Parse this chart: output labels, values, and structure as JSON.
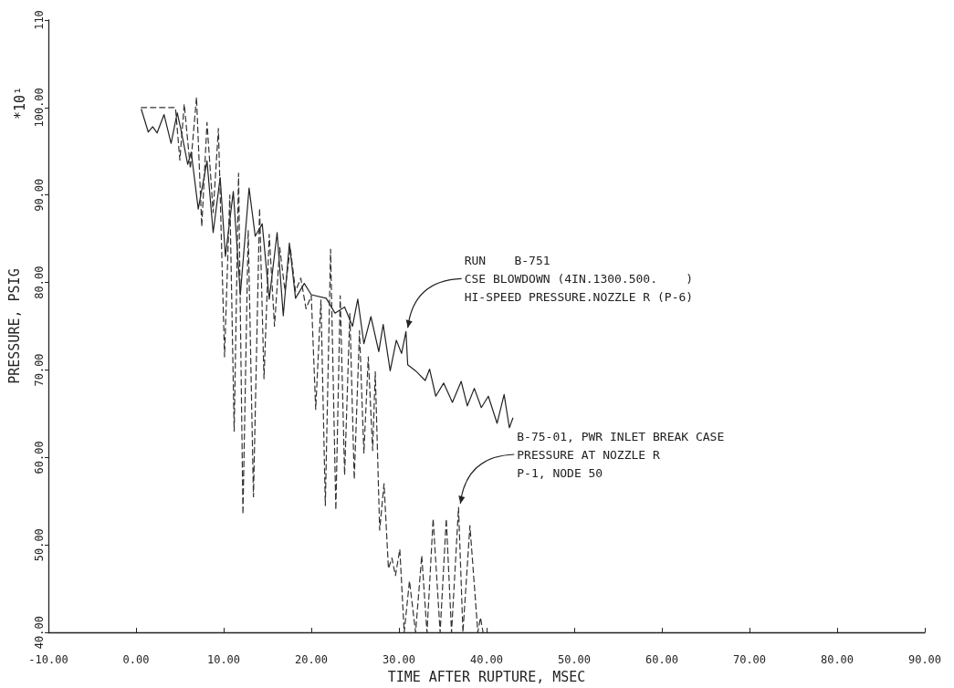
{
  "chart_data": {
    "type": "line",
    "xlabel": "TIME AFTER RUPTURE, MSEC",
    "ylabel": "PRESSURE, PSIG",
    "xlim": [
      -10,
      90
    ],
    "xticks": [
      {
        "value": -10,
        "label": "-10.00"
      },
      {
        "value": 0,
        "label": "0.00"
      },
      {
        "value": 10,
        "label": "10.00"
      },
      {
        "value": 20,
        "label": "20.00"
      },
      {
        "value": 30,
        "label": "30.00"
      },
      {
        "value": 40,
        "label": "40.00"
      },
      {
        "value": 50,
        "label": "50.00"
      },
      {
        "value": 60,
        "label": "60.00"
      },
      {
        "value": 70,
        "label": "70.00"
      },
      {
        "value": 80,
        "label": "80.00"
      },
      {
        "value": 90,
        "label": "90.00"
      }
    ],
    "ylim": [
      40,
      110
    ],
    "yticks": [
      {
        "value": 40,
        "label": "40.00"
      },
      {
        "value": 50,
        "label": "50.00"
      },
      {
        "value": 60,
        "label": "60.00"
      },
      {
        "value": 70,
        "label": "70.00"
      },
      {
        "value": 80,
        "label": "80.00"
      },
      {
        "value": 90,
        "label": "90.00"
      },
      {
        "value": 100,
        "label": "100.00"
      },
      {
        "value": 110,
        "label": "110"
      }
    ],
    "grid": false,
    "marker": "none",
    "annotations": [
      "*10¹",
      {
        "text": "RUN    B-751\nCSE BLOWDOWN (4IN.1300.500.    )\nHI-SPEED PRESSURE.NOZZLE R (P-6)",
        "x": 30.8,
        "y": 74.4
      },
      {
        "text": "B-75-01, PWR INLET BREAK CASE\nPRESSURE AT NOZZLE R\nP-1, NODE 50",
        "x": 36.8,
        "y": 54.3
      }
    ],
    "series": [
      {
        "color": "#222222",
        "line_style": "solid",
        "x": [
          0.6,
          1.4,
          1.9,
          2.4,
          3.2,
          4.0,
          4.7,
          5.1,
          5.9,
          6.3,
          7.1,
          8.1,
          8.8,
          9.6,
          10.2,
          11.1,
          11.9,
          12.9,
          13.6,
          14.4,
          15.2,
          16.1,
          16.8,
          17.5,
          18.2,
          19.2,
          20.0,
          21.7,
          22.7,
          23.8,
          24.7,
          25.3,
          26.0,
          26.8,
          27.7,
          28.2,
          29.0,
          29.7,
          30.3,
          30.8,
          31.0,
          31.9,
          33.0,
          33.5,
          34.2,
          35.1,
          36.1,
          37.1,
          37.8,
          38.6,
          39.4,
          40.2,
          41.2,
          42.0,
          42.6,
          43.0
        ],
        "values": [
          99.8,
          97.2,
          97.8,
          97.1,
          99.2,
          95.9,
          99.4,
          97.6,
          93.5,
          94.9,
          88.4,
          93.9,
          85.7,
          92.0,
          83.0,
          90.4,
          78.6,
          90.8,
          85.3,
          86.7,
          78.1,
          85.7,
          76.2,
          84.5,
          78.2,
          79.9,
          78.6,
          78.2,
          76.5,
          77.2,
          75.0,
          78.1,
          73.0,
          76.1,
          72.1,
          75.2,
          69.9,
          73.4,
          71.9,
          74.4,
          70.6,
          69.9,
          68.8,
          70.1,
          67.0,
          68.5,
          66.3,
          68.7,
          65.9,
          67.9,
          65.7,
          67.0,
          63.9,
          67.2,
          63.4,
          64.5
        ]
      },
      {
        "color": "#333333",
        "line_style": "dashed",
        "x": [
          0.6,
          4.5,
          5.0,
          5.5,
          6.2,
          6.9,
          7.5,
          8.1,
          8.8,
          9.4,
          10.1,
          10.7,
          11.2,
          11.7,
          12.2,
          12.8,
          13.4,
          14.1,
          14.6,
          15.2,
          15.8,
          16.4,
          17.0,
          17.6,
          18.2,
          18.8,
          19.4,
          20.0,
          20.5,
          21.1,
          21.6,
          22.2,
          22.8,
          23.3,
          23.8,
          24.4,
          24.9,
          25.5,
          26.0,
          26.5,
          27.0,
          27.3,
          27.8,
          28.3,
          28.8,
          29.2,
          29.6,
          30.1,
          30.6,
          31.2,
          31.9,
          32.6,
          33.2,
          33.9,
          34.7,
          35.4,
          36.0,
          36.8,
          37.3,
          38.1,
          39.0,
          39.3,
          39.6
        ],
        "values": [
          100,
          100,
          94.0,
          100.4,
          93.0,
          101.2,
          86.4,
          98.3,
          88.0,
          97.6,
          71.5,
          90.0,
          63.0,
          92.5,
          53.5,
          86.0,
          55.5,
          88.5,
          69.0,
          85.5,
          75.0,
          84.0,
          79.0,
          84.0,
          79.0,
          80.5,
          77.0,
          78.5,
          65.5,
          78.0,
          54.5,
          83.8,
          54.0,
          78.5,
          58.0,
          76.5,
          57.5,
          74.5,
          60.5,
          71.5,
          60.8,
          69.8,
          51.7,
          57.0,
          47.3,
          48.5,
          46.5,
          49.5,
          40,
          45.9,
          40,
          48.8,
          40,
          53.0,
          40,
          53.0,
          40,
          54.3,
          40,
          52.2,
          40,
          41.7,
          40
        ]
      }
    ]
  }
}
